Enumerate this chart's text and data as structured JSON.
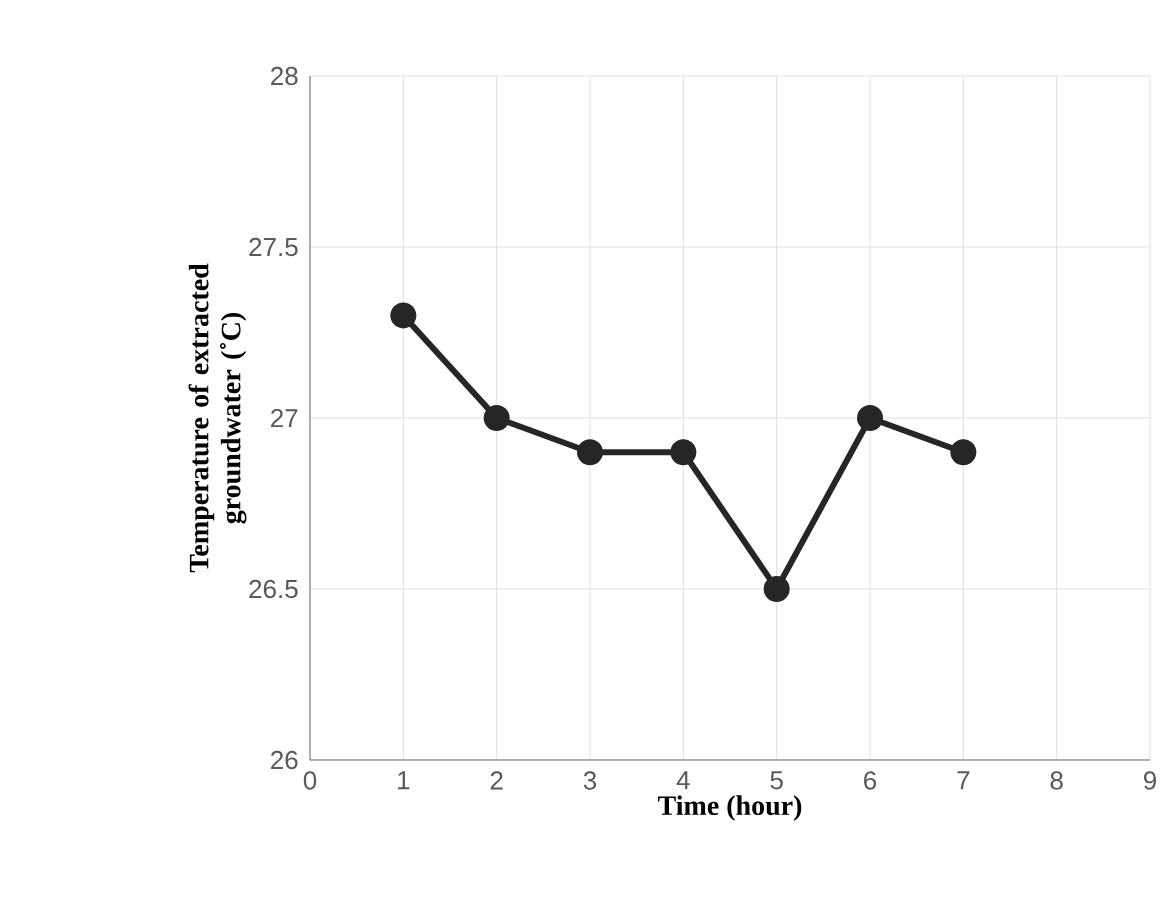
{
  "chart_data": {
    "type": "line",
    "xlabel": "Time (hour)",
    "ylabel": "Temperature of extracted groundwater (˚C)",
    "x": [
      1,
      2,
      3,
      4,
      5,
      6,
      7
    ],
    "series": [
      {
        "color": "#262626",
        "values": [
          27.3,
          27.0,
          26.9,
          26.9,
          26.5,
          27.0,
          26.9
        ]
      }
    ],
    "xlim": [
      0,
      9
    ],
    "xticks": [
      0,
      1,
      2,
      3,
      4,
      5,
      6,
      7,
      8,
      9
    ],
    "ylim": [
      26,
      28
    ],
    "yticks": [
      26,
      26.5,
      27,
      27.5,
      28
    ],
    "grid": true,
    "marker": "circle",
    "line_style": "solid"
  }
}
